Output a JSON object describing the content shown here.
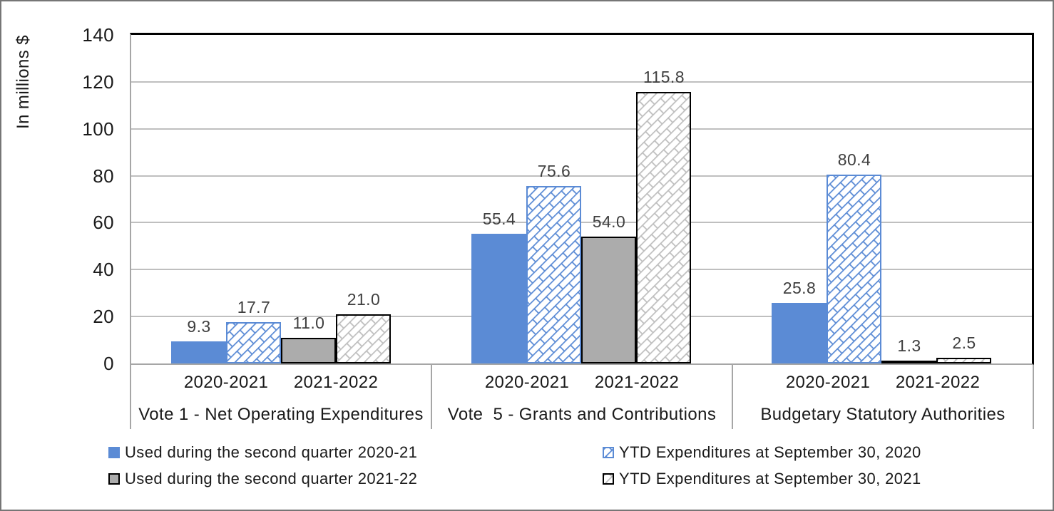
{
  "chart_data": {
    "type": "bar",
    "title": "",
    "ylabel": "In millions $",
    "ylim": [
      0,
      140
    ],
    "yticks": [
      0,
      20,
      40,
      60,
      80,
      100,
      120,
      140
    ],
    "grid": true,
    "legend_position": "bottom",
    "series": [
      {
        "id": "q2_2020",
        "label": "Used during the second quarter 2020-21",
        "style": "solid-blue"
      },
      {
        "id": "ytd_2020",
        "label": "YTD Expenditures at September 30, 2020",
        "style": "hatch-blue"
      },
      {
        "id": "q2_2021",
        "label": "Used during the second quarter 2021-22",
        "style": "solid-gray"
      },
      {
        "id": "ytd_2021",
        "label": "YTD Expenditures at September 30, 2021",
        "style": "hatch-gray"
      }
    ],
    "groups": [
      {
        "label": "Vote 1 - Net Operating Expenditures",
        "clusters": [
          {
            "label": "2020-2021",
            "bars": [
              {
                "series": "q2_2020",
                "value": 9.3,
                "text": "9.3"
              },
              {
                "series": "ytd_2020",
                "value": 17.7,
                "text": "17.7"
              }
            ]
          },
          {
            "label": "2021-2022",
            "bars": [
              {
                "series": "q2_2021",
                "value": 11.0,
                "text": "11.0"
              },
              {
                "series": "ytd_2021",
                "value": 21.0,
                "text": "21.0"
              }
            ]
          }
        ]
      },
      {
        "label": "Vote  5 - Grants and Contributions",
        "clusters": [
          {
            "label": "2020-2021",
            "bars": [
              {
                "series": "q2_2020",
                "value": 55.4,
                "text": "55.4"
              },
              {
                "series": "ytd_2020",
                "value": 75.6,
                "text": "75.6"
              }
            ]
          },
          {
            "label": "2021-2022",
            "bars": [
              {
                "series": "q2_2021",
                "value": 54.0,
                "text": "54.0"
              },
              {
                "series": "ytd_2021",
                "value": 115.8,
                "text": "115.8"
              }
            ]
          }
        ]
      },
      {
        "label": "Budgetary Statutory Authorities",
        "clusters": [
          {
            "label": "2020-2021",
            "bars": [
              {
                "series": "q2_2020",
                "value": 25.8,
                "text": "25.8"
              },
              {
                "series": "ytd_2020",
                "value": 80.4,
                "text": "80.4"
              }
            ]
          },
          {
            "label": "2021-2022",
            "bars": [
              {
                "series": "q2_2021",
                "value": 1.3,
                "text": "1.3"
              },
              {
                "series": "ytd_2021",
                "value": 2.5,
                "text": "2.5"
              }
            ]
          }
        ]
      }
    ],
    "legend_columns": [
      [
        "q2_2020",
        "q2_2021"
      ],
      [
        "ytd_2020",
        "ytd_2021"
      ]
    ],
    "colors": {
      "blue": "#5B8BD5",
      "gray_fill": "#ACACAC",
      "gray_hatch": "#BFBFBF",
      "black": "#000000",
      "gridline": "#BFBFBF",
      "axis_line": "#A6A6A6",
      "text": "#1A1A1A",
      "data_label_text": "#3F3F3F",
      "frame_border": "#767676"
    }
  }
}
